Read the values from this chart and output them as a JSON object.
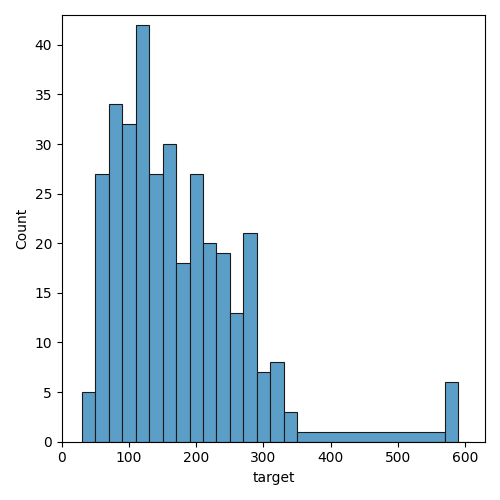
{
  "bin_edges": [
    30,
    50,
    70,
    90,
    110,
    130,
    150,
    170,
    190,
    210,
    230,
    250,
    270,
    290,
    310,
    330,
    350,
    570,
    590,
    610
  ],
  "counts": [
    5,
    27,
    34,
    32,
    42,
    27,
    30,
    18,
    27,
    20,
    19,
    13,
    21,
    7,
    8,
    3,
    1,
    6,
    0
  ],
  "bar_color": "#5b9fc8",
  "edge_color": "#1a1a1a",
  "xlabel": "target",
  "ylabel": "Count",
  "xlim": [
    0,
    630
  ],
  "ylim": [
    0,
    43
  ],
  "xticks": [
    0,
    100,
    200,
    300,
    400,
    500,
    600
  ],
  "yticks": [
    0,
    5,
    10,
    15,
    20,
    25,
    30,
    35,
    40
  ],
  "figsize": [
    5.0,
    5.0
  ],
  "dpi": 100
}
